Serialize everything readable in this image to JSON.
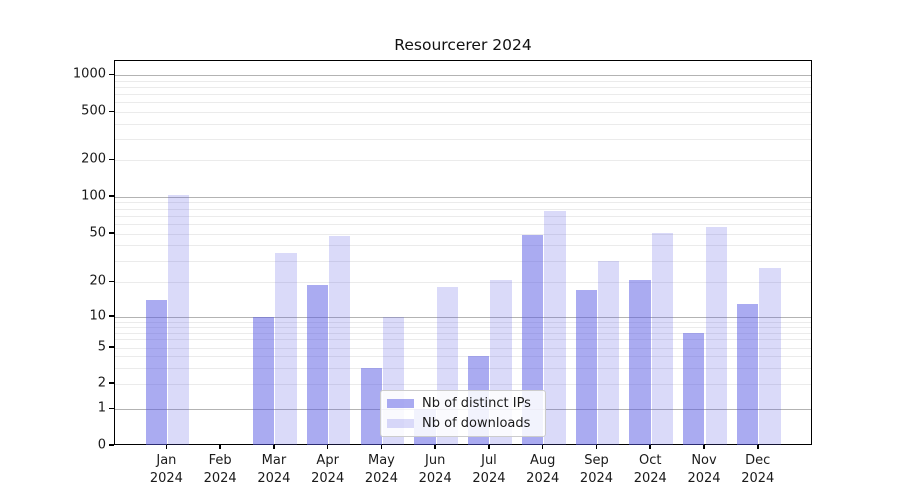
{
  "chart_data": {
    "type": "bar",
    "title": "Resourcerer 2024",
    "categories": [
      "Jan",
      "Feb",
      "Mar",
      "Apr",
      "May",
      "Jun",
      "Jul",
      "Aug",
      "Sep",
      "Oct",
      "Nov",
      "Dec"
    ],
    "category_year_suffix": "2024",
    "series": [
      {
        "name": "Nb of distinct IPs",
        "fill": "rgba(85,88,228,0.50)",
        "values": [
          14,
          0,
          10,
          19,
          3,
          1,
          4,
          49,
          17,
          21,
          7,
          13
        ]
      },
      {
        "name": "Nb of downloads",
        "fill": "rgba(85,88,228,0.22)",
        "values": [
          104,
          0,
          35,
          48,
          10,
          18,
          21,
          76,
          30,
          51,
          57,
          26
        ]
      }
    ],
    "y_axis": {
      "scale": "asinh-log",
      "tick_labels": [
        "0",
        "1",
        "2",
        "5",
        "10",
        "20",
        "50",
        "100",
        "200",
        "500",
        "1000"
      ],
      "tick_values": [
        0,
        1,
        2,
        5,
        10,
        20,
        50,
        100,
        200,
        500,
        1000
      ],
      "major_grid_values": [
        1,
        10,
        100,
        1000
      ],
      "minor_grid_values": [
        2,
        3,
        4,
        5,
        6,
        7,
        8,
        9,
        20,
        30,
        40,
        50,
        60,
        70,
        80,
        90,
        200,
        300,
        400,
        500,
        600,
        700,
        800,
        900
      ],
      "ylim": [
        0,
        1300
      ]
    },
    "grid": true,
    "legend": {
      "position": "lower-center",
      "entries": [
        "Nb of distinct IPs",
        "Nb of downloads"
      ]
    },
    "colors": {
      "bar_base": "#5558e4",
      "major_grid": "#b3b3b3",
      "minor_grid": "#ebebeb",
      "axis": "#000000",
      "text": "#1a1a1a"
    }
  }
}
